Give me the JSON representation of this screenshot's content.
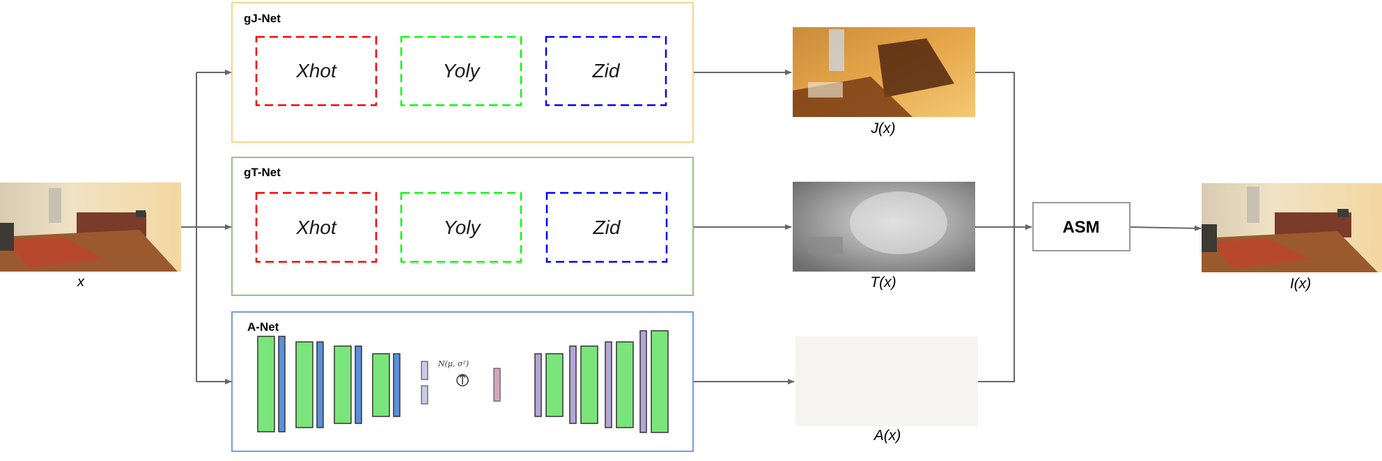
{
  "modules": {
    "gj_net": {
      "title": "gJ-Net",
      "blocks": [
        "Xhot",
        "Yoly",
        "Zid"
      ]
    },
    "gt_net": {
      "title": "gT-Net",
      "blocks": [
        "Xhot",
        "Yoly",
        "Zid"
      ]
    },
    "a_net": {
      "title": "A-Net",
      "latent_label": "N(μ, σ²)"
    }
  },
  "asm": {
    "label": "ASM"
  },
  "images": {
    "input": {
      "label": "x"
    },
    "j": {
      "label": "J(x)"
    },
    "t": {
      "label": "T(x)"
    },
    "a": {
      "label": "A(x)"
    },
    "output": {
      "label": "I(x)"
    }
  },
  "colors": {
    "gj_border": "#f7d58c",
    "gt_border": "#93c47d",
    "a_border": "#6d9eeb",
    "block_red": "#ff0000",
    "block_green": "#00ff00",
    "block_blue": "#0000ff",
    "layer_green": "#7ae57a",
    "layer_blue": "#5b8fdb",
    "layer_purple": "#b4a7d6",
    "layer_pink": "#d5a6bd",
    "arrow": "#666666"
  }
}
